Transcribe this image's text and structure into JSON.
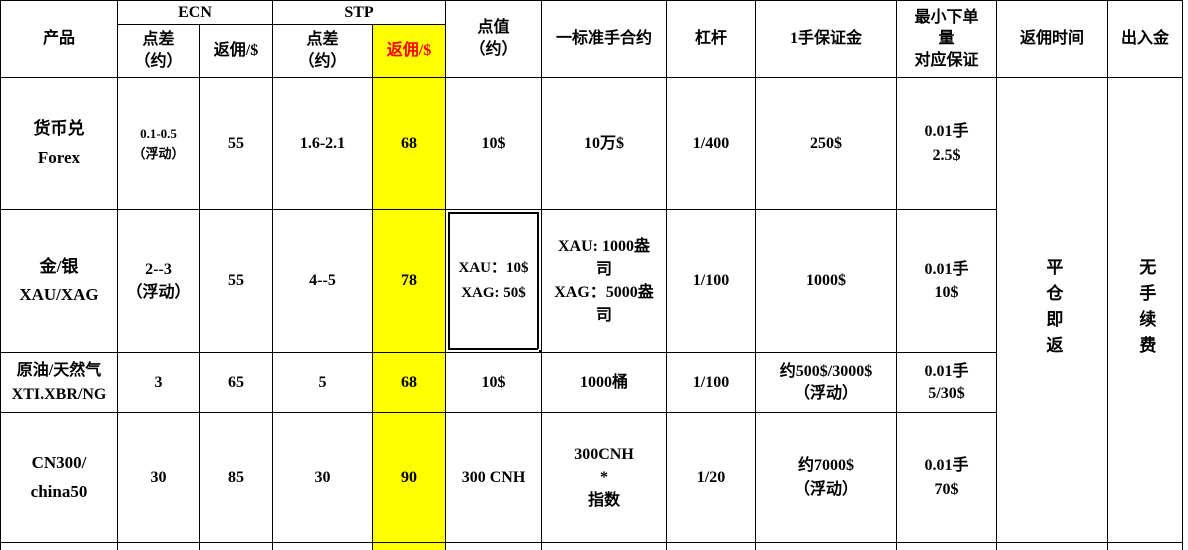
{
  "sheet": {
    "headers": {
      "product": "产品",
      "ecn_group": "ECN",
      "stp_group": "STP",
      "ecn_spread": "点差\n（约）",
      "ecn_rebate": "返佣/$",
      "stp_spread": "点差\n（约）",
      "stp_rebate": "返佣/$",
      "point_value": "点值\n（约）",
      "contract": "一标准手合约",
      "leverage": "杠杆",
      "margin": "1手保证金",
      "min_order": "最小下单\n量\n对应保证",
      "rebate_time": "返佣时间",
      "deposit_withdraw": "出入金"
    },
    "rows": [
      {
        "product": "货币兑\nForex",
        "ecn_spread": "0.1-0.5\n（浮动）",
        "ecn_rebate": "55",
        "stp_spread": "1.6-2.1",
        "stp_rebate": "68",
        "point_value": "10$",
        "contract": "10万$",
        "leverage": "1/400",
        "margin": "250$",
        "min_order": "0.01手\n2.5$"
      },
      {
        "product": "金/银\nXAU/XAG",
        "ecn_spread": "2--3\n（浮动）",
        "ecn_rebate": "55",
        "stp_spread": "4--5",
        "stp_rebate": "78",
        "point_value": "XAU：10$\nXAG: 50$",
        "contract": "XAU: 1000盎\n司\nXAG：5000盎\n司",
        "leverage": "1/100",
        "margin": "1000$",
        "min_order": "0.01手\n10$"
      },
      {
        "product": "原油/天然气\nXTI.XBR/NG",
        "ecn_spread": "3",
        "ecn_rebate": "65",
        "stp_spread": "5",
        "stp_rebate": "68",
        "point_value": "10$",
        "contract": "1000桶",
        "leverage": "1/100",
        "margin": "约500$/3000$\n（浮动）",
        "min_order": "0.01手\n5/30$"
      },
      {
        "product": "CN300/\nchina50",
        "ecn_spread": "30",
        "ecn_rebate": "85",
        "stp_spread": "30",
        "stp_rebate": "90",
        "point_value": "300 CNH",
        "contract": "300CNH\n*\n指数",
        "leverage": "1/20",
        "margin": "约7000$\n（浮动）",
        "min_order": "0.01手\n70$"
      }
    ],
    "merged_cells": {
      "rebate_time": "平仓即返",
      "deposit_withdraw": "无手续费"
    },
    "colors": {
      "highlight": "#FFFF00",
      "accent_text": "#FF0000",
      "border": "#000000",
      "text": "#000000",
      "background": "#FFFFFF"
    }
  }
}
